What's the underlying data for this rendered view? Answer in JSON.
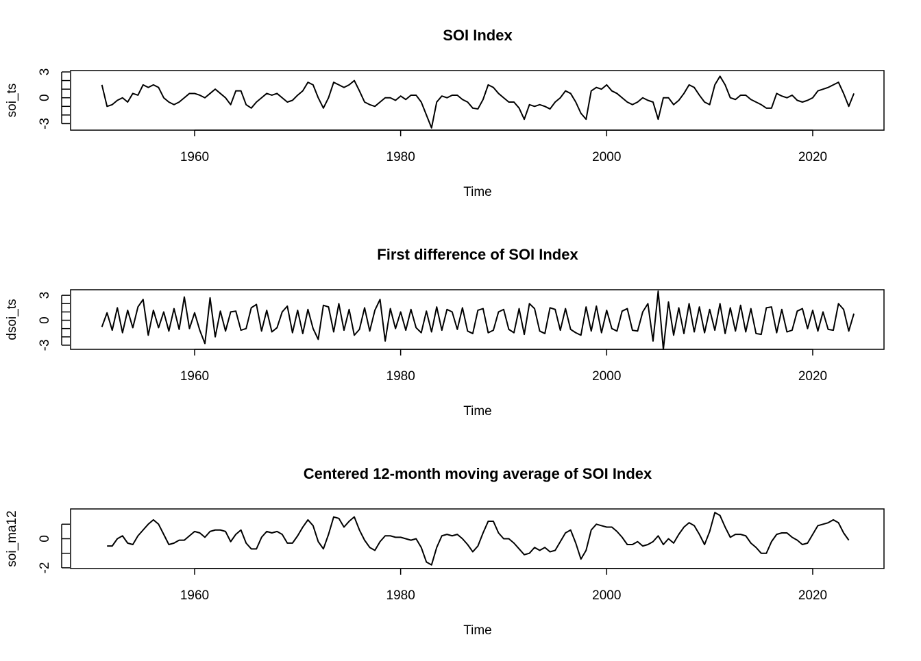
{
  "chart_data": [
    {
      "type": "line",
      "title": "SOI Index",
      "xlabel": "Time",
      "ylabel": "soi_ts",
      "color": "#000000",
      "xlim": [
        1947.96,
        2026.92
      ],
      "xticks": [
        1960,
        1980,
        2000,
        2020
      ],
      "ylim": [
        -3.76,
        3.16
      ],
      "yticks": [
        -3,
        0,
        3
      ],
      "minor_yticks": [
        -2,
        -1,
        1,
        2
      ],
      "x": [
        1951,
        1951.5,
        1952,
        1952.5,
        1953,
        1953.5,
        1954,
        1954.5,
        1955,
        1955.5,
        1956,
        1956.5,
        1957,
        1957.5,
        1958,
        1958.5,
        1959,
        1959.5,
        1960,
        1960.5,
        1961,
        1961.5,
        1962,
        1962.5,
        1963,
        1963.5,
        1964,
        1964.5,
        1965,
        1965.5,
        1966,
        1966.5,
        1967,
        1967.5,
        1968,
        1968.5,
        1969,
        1969.5,
        1970,
        1970.5,
        1971,
        1971.5,
        1972,
        1972.5,
        1973,
        1973.5,
        1974,
        1974.5,
        1975,
        1975.5,
        1976,
        1976.5,
        1977,
        1977.5,
        1978,
        1978.5,
        1979,
        1979.5,
        1980,
        1980.5,
        1981,
        1981.5,
        1982,
        1982.5,
        1983,
        1983.5,
        1984,
        1984.5,
        1985,
        1985.5,
        1986,
        1986.5,
        1987,
        1987.5,
        1988,
        1988.5,
        1989,
        1989.5,
        1990,
        1990.5,
        1991,
        1991.5,
        1992,
        1992.5,
        1993,
        1993.5,
        1994,
        1994.5,
        1995,
        1995.5,
        1996,
        1996.5,
        1997,
        1997.5,
        1998,
        1998.5,
        1999,
        1999.5,
        2000,
        2000.5,
        2001,
        2001.5,
        2002,
        2002.5,
        2003,
        2003.5,
        2004,
        2004.5,
        2005,
        2005.5,
        2006,
        2006.5,
        2007,
        2007.5,
        2008,
        2008.5,
        2009,
        2009.5,
        2010,
        2010.5,
        2011,
        2011.5,
        2012,
        2012.5,
        2013,
        2013.5,
        2014,
        2014.5,
        2015,
        2015.5,
        2016,
        2016.5,
        2017,
        2017.5,
        2018,
        2018.5,
        2019,
        2019.5,
        2020,
        2020.5,
        2021,
        2021.5,
        2022,
        2022.5,
        2023,
        2023.5,
        2024
      ],
      "values": [
        1.5,
        -1,
        -0.8,
        -0.3,
        0,
        -0.5,
        0.5,
        0.3,
        1.5,
        1.2,
        1.5,
        1.2,
        0,
        -0.5,
        -0.8,
        -0.5,
        0,
        0.5,
        0.5,
        0.3,
        0,
        0.5,
        1,
        0.5,
        0,
        -0.8,
        0.8,
        0.8,
        -0.8,
        -1.2,
        -0.5,
        0,
        0.5,
        0.3,
        0.5,
        0,
        -0.5,
        -0.3,
        0.3,
        0.8,
        1.8,
        1.5,
        0,
        -1.2,
        0,
        1.8,
        1.5,
        1.2,
        1.5,
        2,
        0.8,
        -0.5,
        -0.8,
        -1,
        -0.5,
        0,
        0,
        -0.3,
        0.2,
        -0.2,
        0.3,
        0.3,
        -0.5,
        -2,
        -3.5,
        -0.5,
        0.2,
        0,
        0.3,
        0.3,
        -0.2,
        -0.5,
        -1.2,
        -1.3,
        -0.2,
        1.5,
        1.2,
        0.5,
        0,
        -0.5,
        -0.5,
        -1.2,
        -2.5,
        -0.8,
        -1,
        -0.8,
        -1,
        -1.3,
        -0.5,
        0,
        0.8,
        0.5,
        -0.5,
        -1.8,
        -2.5,
        0.8,
        1.2,
        1,
        1.5,
        0.8,
        0.5,
        0,
        -0.5,
        -0.8,
        -0.5,
        0,
        -0.3,
        -0.5,
        -2.5,
        0,
        0,
        -0.8,
        -0.3,
        0.5,
        1.5,
        1.2,
        0.3,
        -0.5,
        -0.8,
        1.5,
        2.5,
        1.5,
        0,
        -0.2,
        0.3,
        0.3,
        -0.2,
        -0.5,
        -0.8,
        -1.2,
        -1.2,
        0.5,
        0.2,
        0,
        0.3,
        -0.3,
        -0.5,
        -0.3,
        0,
        0.8,
        1,
        1.2,
        1.5,
        1.8,
        0.5,
        -1,
        0.5
      ]
    },
    {
      "type": "line",
      "title": "First difference of SOI Index",
      "xlabel": "Time",
      "ylabel": "dsoi_ts",
      "color": "#000000",
      "xlim": [
        1947.96,
        2026.92
      ],
      "xticks": [
        1960,
        1980,
        2000,
        2020
      ],
      "ylim": [
        -3.5,
        3.67
      ],
      "yticks": [
        -3,
        0,
        3
      ],
      "minor_yticks": [
        -2,
        -1,
        1,
        2
      ],
      "x": [
        1951,
        1951.5,
        1952,
        1952.5,
        1953,
        1953.5,
        1954,
        1954.5,
        1955,
        1955.5,
        1956,
        1956.5,
        1957,
        1957.5,
        1958,
        1958.5,
        1959,
        1959.5,
        1960,
        1960.5,
        1961,
        1961.5,
        1962,
        1962.5,
        1963,
        1963.5,
        1964,
        1964.5,
        1965,
        1965.5,
        1966,
        1966.5,
        1967,
        1967.5,
        1968,
        1968.5,
        1969,
        1969.5,
        1970,
        1970.5,
        1971,
        1971.5,
        1972,
        1972.5,
        1973,
        1973.5,
        1974,
        1974.5,
        1975,
        1975.5,
        1976,
        1976.5,
        1977,
        1977.5,
        1978,
        1978.5,
        1979,
        1979.5,
        1980,
        1980.5,
        1981,
        1981.5,
        1982,
        1982.5,
        1983,
        1983.5,
        1984,
        1984.5,
        1985,
        1985.5,
        1986,
        1986.5,
        1987,
        1987.5,
        1988,
        1988.5,
        1989,
        1989.5,
        1990,
        1990.5,
        1991,
        1991.5,
        1992,
        1992.5,
        1993,
        1993.5,
        1994,
        1994.5,
        1995,
        1995.5,
        1996,
        1996.5,
        1997,
        1997.5,
        1998,
        1998.5,
        1999,
        1999.5,
        2000,
        2000.5,
        2001,
        2001.5,
        2002,
        2002.5,
        2003,
        2003.5,
        2004,
        2004.5,
        2005,
        2005.5,
        2006,
        2006.5,
        2007,
        2007.5,
        2008,
        2008.5,
        2009,
        2009.5,
        2010,
        2010.5,
        2011,
        2011.5,
        2012,
        2012.5,
        2013,
        2013.5,
        2014,
        2014.5,
        2015,
        2015.5,
        2016,
        2016.5,
        2017,
        2017.5,
        2018,
        2018.5,
        2019,
        2019.5,
        2020,
        2020.5,
        2021,
        2021.5,
        2022,
        2022.5,
        2023,
        2023.5,
        2024
      ],
      "values": [
        -0.8,
        0.9,
        -1.2,
        1.5,
        -1.5,
        1.2,
        -0.9,
        1.6,
        2.5,
        -1.8,
        1.2,
        -0.9,
        1.0,
        -1.3,
        1.4,
        -1.1,
        2.8,
        -1.0,
        0.9,
        -1.2,
        -2.8,
        2.7,
        -2.0,
        1.1,
        -1.3,
        1.0,
        1.1,
        -1.2,
        -1.0,
        1.5,
        1.9,
        -1.3,
        1.2,
        -1.4,
        -0.9,
        1.0,
        1.7,
        -1.5,
        1.2,
        -1.6,
        1.3,
        -1.0,
        -2.3,
        1.8,
        1.6,
        -1.4,
        2.0,
        -1.2,
        1.3,
        -1.8,
        -1.1,
        1.5,
        -1.3,
        1.2,
        2.5,
        -2.5,
        1.4,
        -1.0,
        1.0,
        -1.2,
        1.3,
        -0.9,
        -1.5,
        1.1,
        -1.4,
        1.6,
        -1.2,
        1.3,
        1.0,
        -1.1,
        1.5,
        -1.3,
        -1.6,
        1.2,
        1.4,
        -1.5,
        -1.2,
        1.0,
        1.3,
        -1.1,
        -1.5,
        1.4,
        -1.7,
        2.0,
        1.4,
        -1.3,
        -1.6,
        1.5,
        1.3,
        -1.2,
        1.4,
        -1.1,
        -1.5,
        -1.8,
        1.6,
        -1.3,
        1.7,
        -1.5,
        1.2,
        -1.0,
        -1.3,
        1.1,
        1.4,
        -1.2,
        -1.3,
        1.0,
        2.0,
        -2.5,
        3.5,
        -3.5,
        2.2,
        -1.8,
        1.5,
        -1.6,
        2.0,
        -1.4,
        1.6,
        -1.5,
        1.3,
        -1.2,
        2.0,
        -1.6,
        1.5,
        -1.3,
        1.8,
        -1.4,
        1.4,
        -1.6,
        -1.7,
        1.5,
        1.6,
        -1.5,
        1.3,
        -1.4,
        -1.2,
        1.1,
        1.4,
        -1.0,
        1.2,
        -1.3,
        1.0,
        -1.1,
        -1.2,
        2.0,
        1.3,
        -1.3,
        0.8
      ]
    },
    {
      "type": "line",
      "title": "Centered 12-month moving average of SOI Index",
      "xlabel": "Time",
      "ylabel": "soi_ma12",
      "color": "#000000",
      "xlim": [
        1947.96,
        2026.92
      ],
      "xticks": [
        1960,
        1980,
        2000,
        2020
      ],
      "ylim": [
        -2.05,
        2.05
      ],
      "yticks": [
        -2,
        0
      ],
      "minor_yticks": [
        -1,
        1
      ],
      "x": [
        1951.5,
        1952,
        1952.5,
        1953,
        1953.5,
        1954,
        1954.5,
        1955,
        1955.5,
        1956,
        1956.5,
        1957,
        1957.5,
        1958,
        1958.5,
        1959,
        1959.5,
        1960,
        1960.5,
        1961,
        1961.5,
        1962,
        1962.5,
        1963,
        1963.5,
        1964,
        1964.5,
        1965,
        1965.5,
        1966,
        1966.5,
        1967,
        1967.5,
        1968,
        1968.5,
        1969,
        1969.5,
        1970,
        1970.5,
        1971,
        1971.5,
        1972,
        1972.5,
        1973,
        1973.5,
        1974,
        1974.5,
        1975,
        1975.5,
        1976,
        1976.5,
        1977,
        1977.5,
        1978,
        1978.5,
        1979,
        1979.5,
        1980,
        1980.5,
        1981,
        1981.5,
        1982,
        1982.5,
        1983,
        1983.5,
        1984,
        1984.5,
        1985,
        1985.5,
        1986,
        1986.5,
        1987,
        1987.5,
        1988,
        1988.5,
        1989,
        1989.5,
        1990,
        1990.5,
        1991,
        1991.5,
        1992,
        1992.5,
        1993,
        1993.5,
        1994,
        1994.5,
        1995,
        1995.5,
        1996,
        1996.5,
        1997,
        1997.5,
        1998,
        1998.5,
        1999,
        1999.5,
        2000,
        2000.5,
        2001,
        2001.5,
        2002,
        2002.5,
        2003,
        2003.5,
        2004,
        2004.5,
        2005,
        2005.5,
        2006,
        2006.5,
        2007,
        2007.5,
        2008,
        2008.5,
        2009,
        2009.5,
        2010,
        2010.5,
        2011,
        2011.5,
        2012,
        2012.5,
        2013,
        2013.5,
        2014,
        2014.5,
        2015,
        2015.5,
        2016,
        2016.5,
        2017,
        2017.5,
        2018,
        2018.5,
        2019,
        2019.5,
        2020,
        2020.5,
        2021,
        2021.5,
        2022,
        2022.5,
        2023,
        2023.5
      ],
      "values": [
        -0.5,
        -0.5,
        0,
        0.2,
        -0.3,
        -0.4,
        0.2,
        0.6,
        1.0,
        1.3,
        1.0,
        0.3,
        -0.4,
        -0.3,
        -0.1,
        -0.1,
        0.2,
        0.5,
        0.4,
        0.1,
        0.5,
        0.6,
        0.6,
        0.5,
        -0.2,
        0.3,
        0.6,
        -0.3,
        -0.7,
        -0.7,
        0.1,
        0.5,
        0.4,
        0.5,
        0.3,
        -0.3,
        -0.3,
        0.2,
        0.8,
        1.3,
        0.9,
        -0.2,
        -0.7,
        0.3,
        1.5,
        1.4,
        0.8,
        1.2,
        1.5,
        0.6,
        -0.1,
        -0.6,
        -0.8,
        -0.2,
        0.2,
        0.2,
        0.1,
        0.1,
        0.0,
        -0.1,
        0.0,
        -0.6,
        -1.6,
        -1.8,
        -0.6,
        0.2,
        0.3,
        0.2,
        0.3,
        0.0,
        -0.4,
        -0.9,
        -0.5,
        0.4,
        1.2,
        1.2,
        0.4,
        0.0,
        0.0,
        -0.3,
        -0.7,
        -1.1,
        -1.0,
        -0.6,
        -0.8,
        -0.6,
        -0.9,
        -0.8,
        -0.2,
        0.4,
        0.6,
        -0.3,
        -1.4,
        -0.8,
        0.6,
        1.0,
        0.9,
        0.8,
        0.8,
        0.5,
        0.1,
        -0.4,
        -0.4,
        -0.2,
        -0.5,
        -0.4,
        -0.2,
        0.2,
        -0.4,
        0.0,
        -0.3,
        0.3,
        0.8,
        1.1,
        0.9,
        0.3,
        -0.4,
        0.5,
        1.8,
        1.6,
        0.8,
        0.1,
        0.3,
        0.3,
        0.2,
        -0.3,
        -0.6,
        -1.0,
        -1.0,
        -0.2,
        0.3,
        0.4,
        0.4,
        0.1,
        -0.1,
        -0.4,
        -0.3,
        0.3,
        0.9,
        1.0,
        1.1,
        1.3,
        1.1,
        0.4,
        -0.1
      ]
    }
  ]
}
